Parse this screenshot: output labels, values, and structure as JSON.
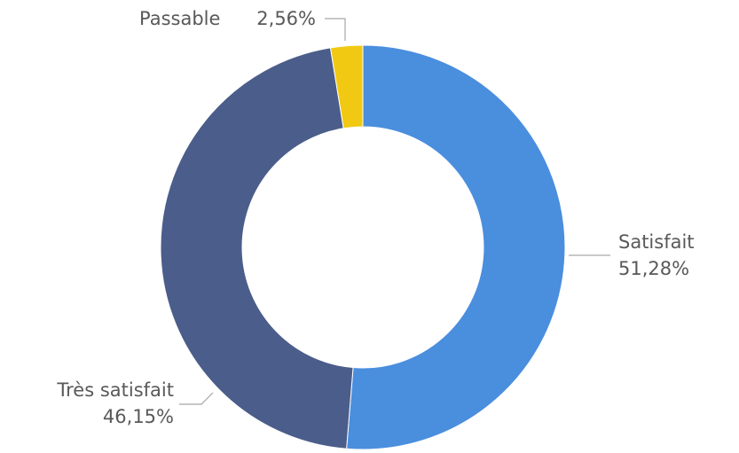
{
  "chart_data": {
    "type": "pie",
    "style": "doughnut",
    "categories": [
      "Satisfait",
      "Très satisfait",
      "Passable"
    ],
    "values": [
      51.28,
      46.15,
      2.56
    ],
    "percent_labels": [
      "51,28%",
      "46,15%",
      "2,56%"
    ],
    "colors": [
      "#4a8ede",
      "#4b5d8a",
      "#f1c912"
    ],
    "start": "12 o'clock",
    "direction": "clockwise",
    "legend": "none",
    "title": ""
  }
}
